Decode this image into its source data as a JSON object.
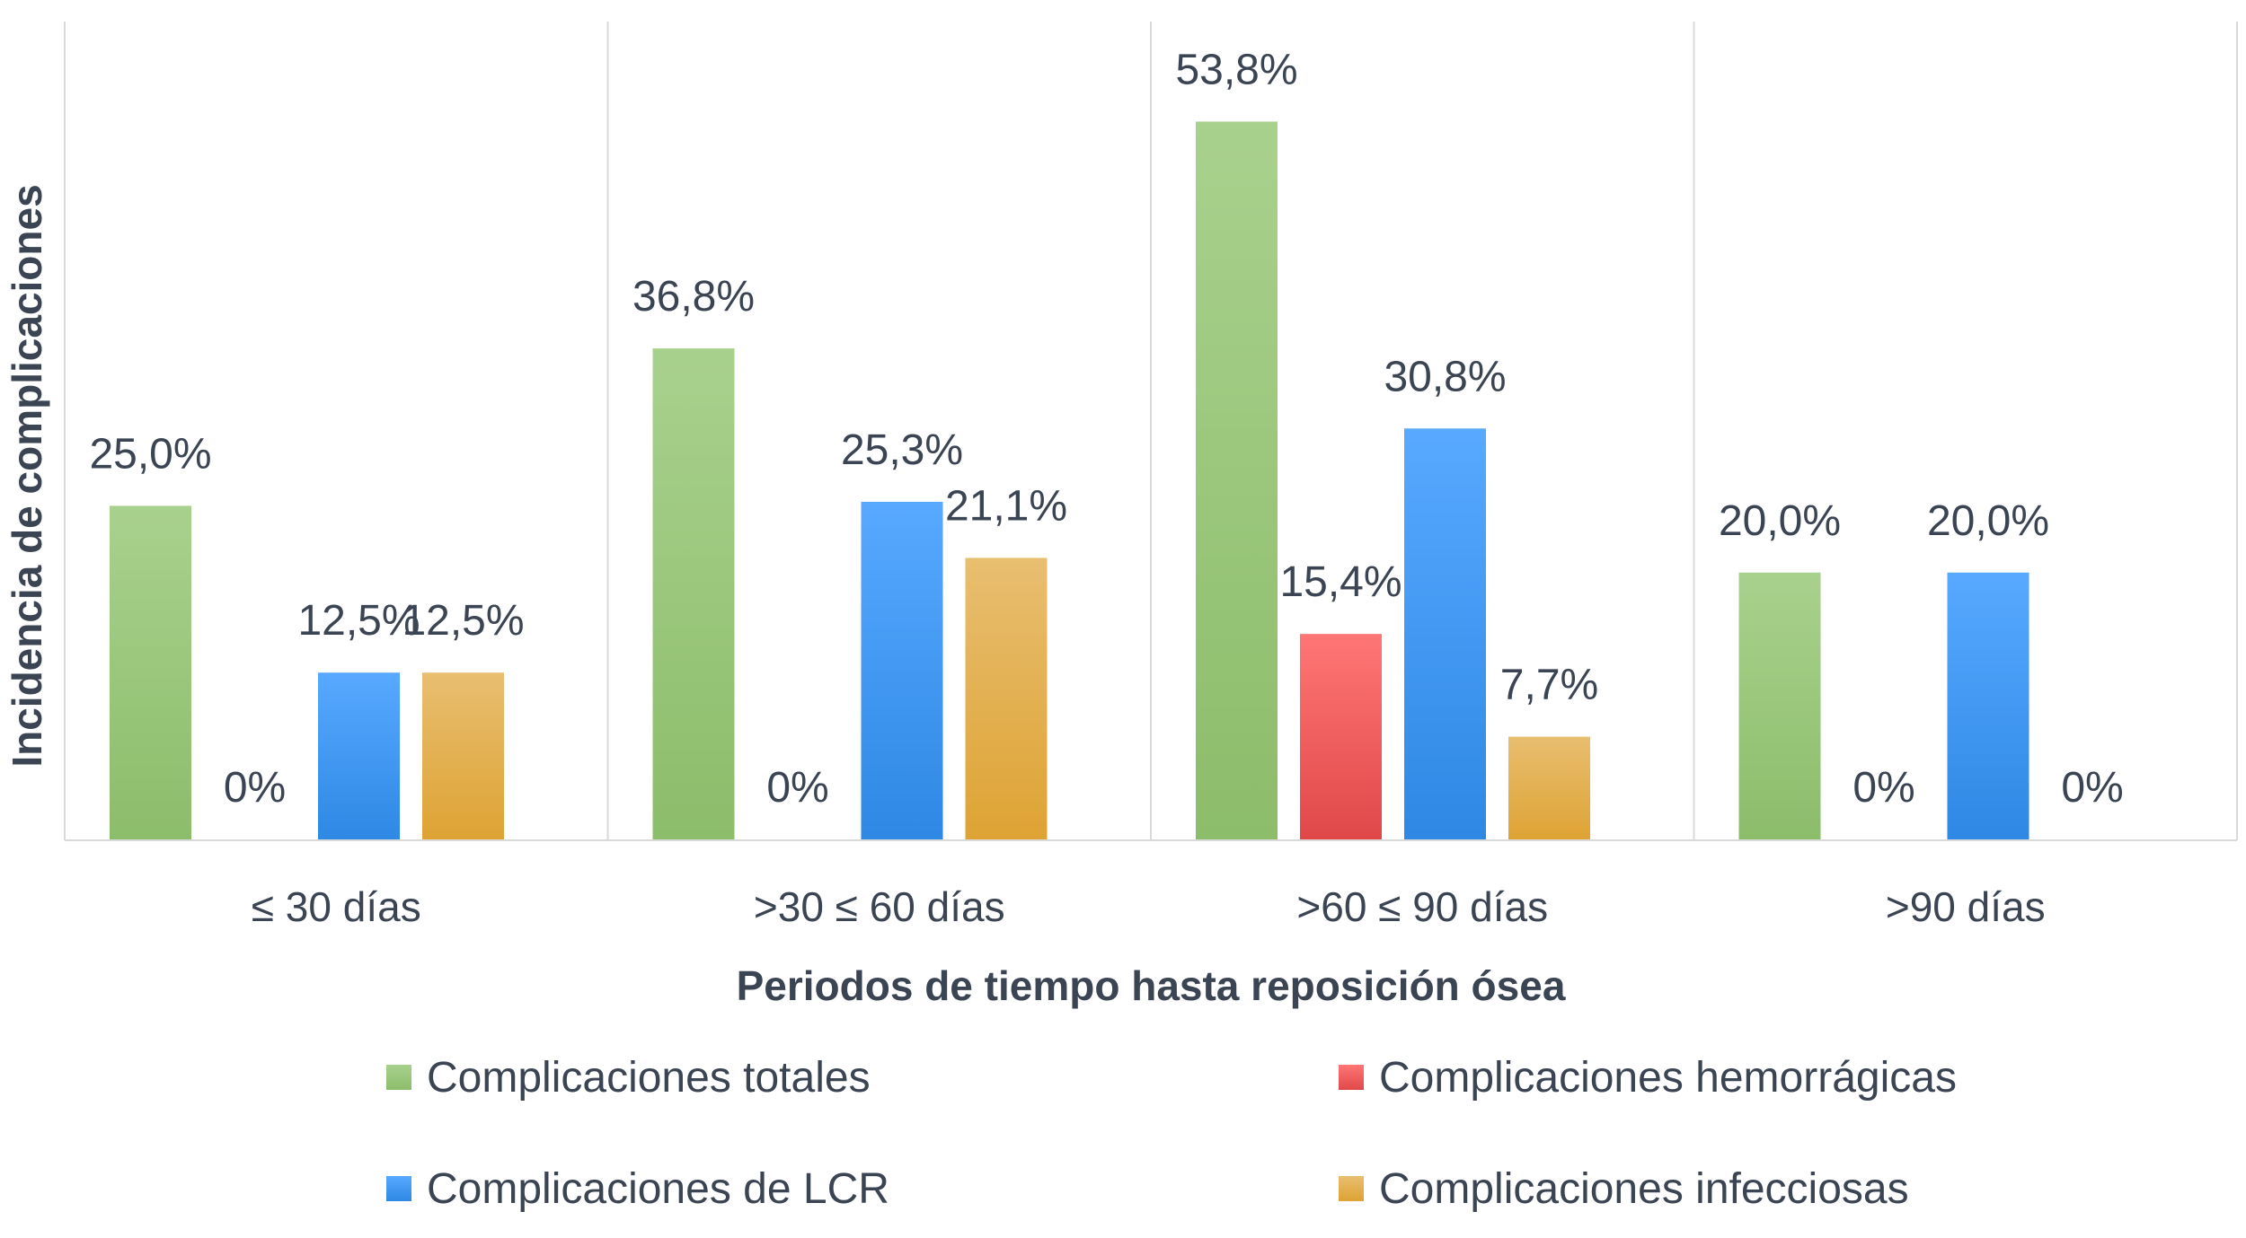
{
  "chart_data": {
    "type": "bar",
    "title": "",
    "xlabel": "Periodos de tiempo hasta reposición ósea",
    "ylabel": "Incidencia de complicaciones",
    "ylim": [
      0,
      61.3
    ],
    "grid": false,
    "legend_position": "bottom",
    "categories": [
      "≤ 30 días",
      ">30 ≤ 60 días",
      ">60 ≤ 90 días",
      ">90 días"
    ],
    "series": [
      {
        "name": "Complicaciones totales",
        "color": "#9cc97a",
        "color_top": "#a9d18e",
        "color_bottom": "#8cbd6a",
        "values": [
          25.0,
          36.8,
          53.8,
          20.0
        ],
        "labels": [
          "25,0%",
          "36,8%",
          "53,8%",
          "20,0%"
        ]
      },
      {
        "name": "Complicaciones hemorrágicas",
        "color": "#f05a5a",
        "color_top": "#ff7676",
        "color_bottom": "#e04848",
        "values": [
          0,
          0,
          15.4,
          0
        ],
        "labels": [
          "0%",
          "0%",
          "15,4%",
          "0%"
        ]
      },
      {
        "name": "Complicaciones de LCR",
        "color": "#3d97f2",
        "color_top": "#58a9ff",
        "color_bottom": "#2e88e4",
        "values": [
          12.5,
          25.3,
          30.8,
          20.0
        ],
        "labels": [
          "12,5%",
          "25,3%",
          "30,8%",
          "20,0%"
        ]
      },
      {
        "name": "Complicaciones infecciosas",
        "color": "#e3ae4c",
        "color_top": "#e8be70",
        "color_bottom": "#dea334",
        "values": [
          12.5,
          21.1,
          7.7,
          0
        ],
        "labels": [
          "12,5%",
          "21,1%",
          "7,7%",
          "0%"
        ]
      }
    ]
  }
}
